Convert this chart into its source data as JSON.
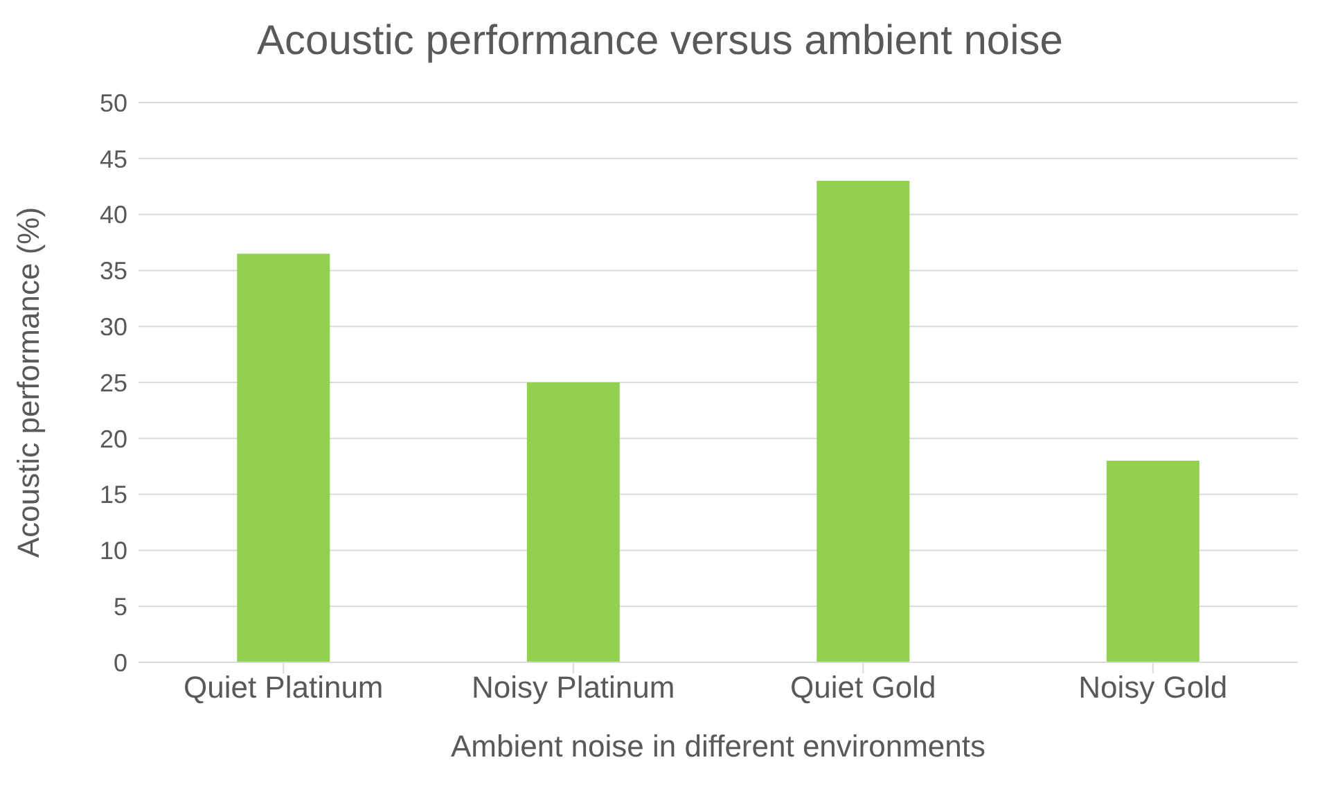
{
  "chart_data": {
    "type": "bar",
    "title": "Acoustic performance versus ambient noise",
    "xlabel": "Ambient noise in different environments",
    "ylabel": "Acoustic performance (%)",
    "categories": [
      "Quiet Platinum",
      "Noisy Platinum",
      "Quiet Gold",
      "Noisy Gold"
    ],
    "values": [
      36.5,
      25,
      43,
      18
    ],
    "color": "#92d050",
    "ylim": [
      0,
      50
    ],
    "yticks": [
      0,
      5,
      10,
      15,
      20,
      25,
      30,
      35,
      40,
      45,
      50
    ],
    "grid": "y"
  }
}
